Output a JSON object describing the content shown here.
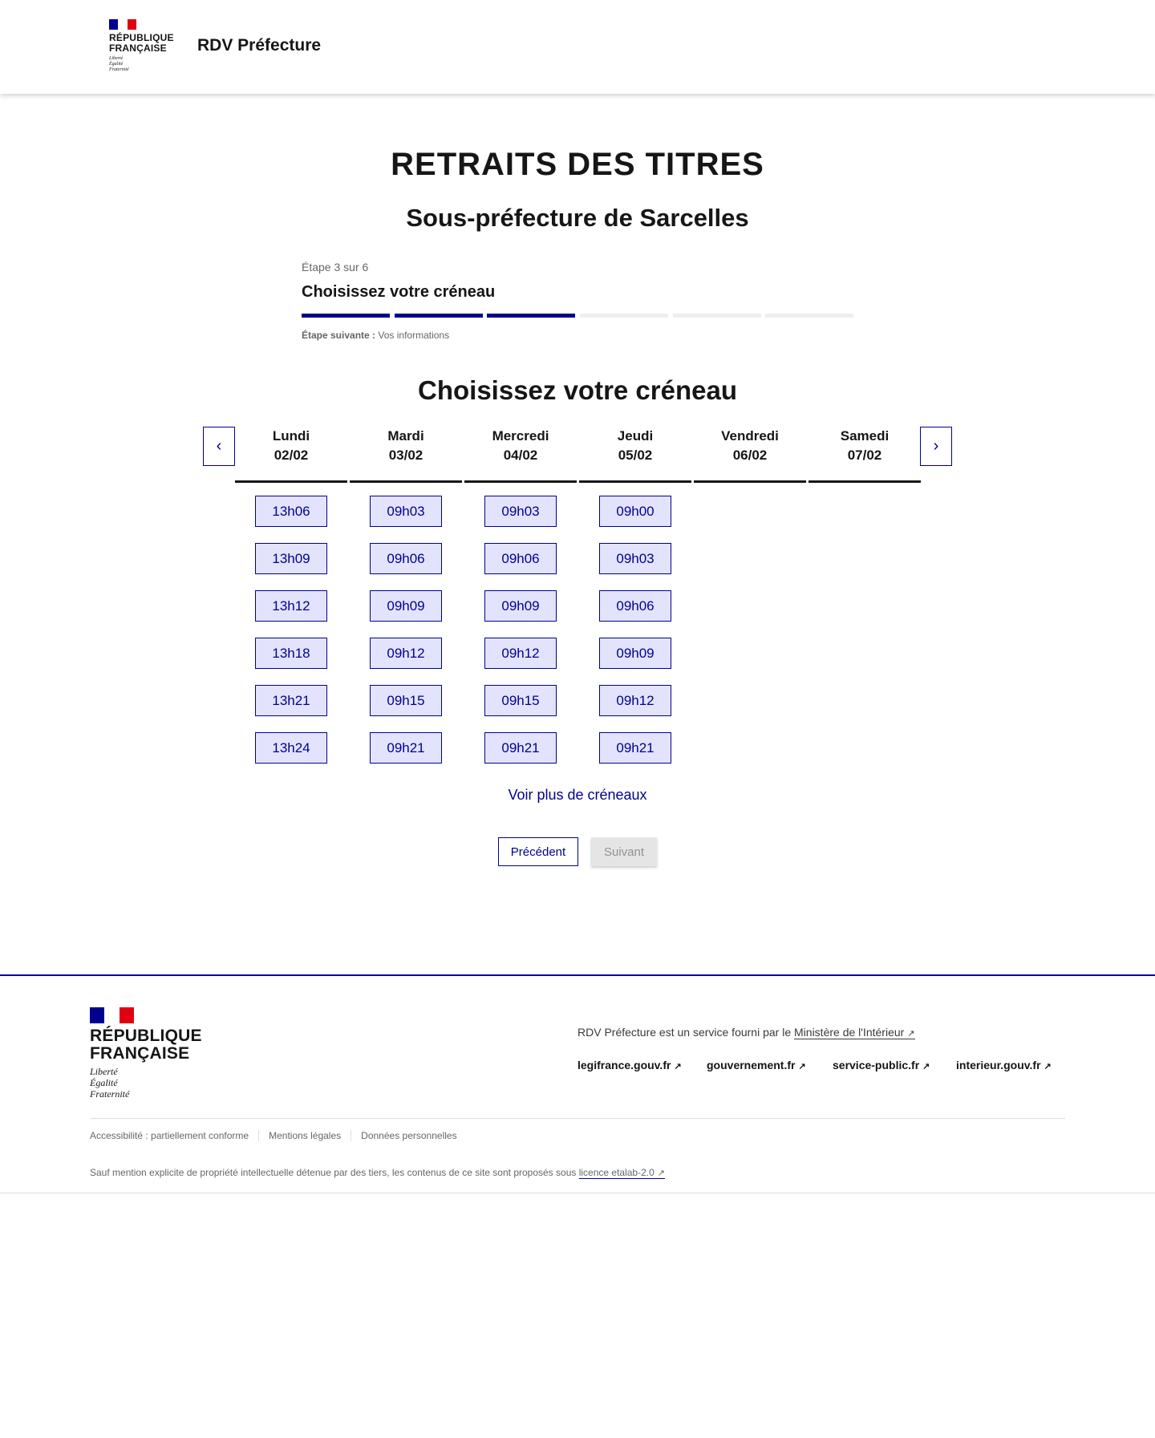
{
  "header": {
    "logo": {
      "line1": "RÉPUBLIQUE",
      "line2": "FRANÇAISE",
      "devise": [
        "Liberté",
        "Égalité",
        "Fraternité"
      ]
    },
    "service_name": "RDV Préfecture"
  },
  "page": {
    "title": "RETRAITS DES TITRES",
    "subtitle": "Sous-préfecture de Sarcelles"
  },
  "stepper": {
    "step_label": "Étape 3 sur 6",
    "current_title": "Choisissez votre créneau",
    "total_steps": 6,
    "current_step": 3,
    "next_label": "Étape suivante :",
    "next_value": "Vos informations"
  },
  "calendar": {
    "title": "Choisissez votre créneau",
    "prev_icon": "chevron-left",
    "next_icon": "chevron-right",
    "days": [
      {
        "name": "Lundi",
        "date": "02/02",
        "slots": [
          "13h06",
          "13h09",
          "13h12",
          "13h18",
          "13h21",
          "13h24"
        ]
      },
      {
        "name": "Mardi",
        "date": "03/02",
        "slots": [
          "09h03",
          "09h06",
          "09h09",
          "09h12",
          "09h15",
          "09h21"
        ]
      },
      {
        "name": "Mercredi",
        "date": "04/02",
        "slots": [
          "09h03",
          "09h06",
          "09h09",
          "09h12",
          "09h15",
          "09h21"
        ]
      },
      {
        "name": "Jeudi",
        "date": "05/02",
        "slots": [
          "09h00",
          "09h03",
          "09h06",
          "09h09",
          "09h12",
          "09h21"
        ]
      },
      {
        "name": "Vendredi",
        "date": "06/02",
        "slots": []
      },
      {
        "name": "Samedi",
        "date": "07/02",
        "slots": []
      }
    ],
    "more_link": "Voir plus de créneaux"
  },
  "actions": {
    "previous": "Précédent",
    "next": "Suivant"
  },
  "footer": {
    "logo": {
      "line1": "RÉPUBLIQUE",
      "line2": "FRANÇAISE",
      "devise": [
        "Liberté",
        "Égalité",
        "Fraternité"
      ]
    },
    "service_text": "RDV Préfecture est un service fourni par le",
    "ministry_link": "Ministère de l'Intérieur",
    "links": [
      "legifrance.gouv.fr",
      "gouvernement.fr",
      "service-public.fr",
      "interieur.gouv.fr"
    ],
    "bottom_links": [
      "Accessibilité : partiellement conforme",
      "Mentions légales",
      "Données personnelles"
    ],
    "license_text": "Sauf mention explicite de propriété intellectuelle détenue par des tiers, les contenus de ce site sont proposés sous",
    "license_link": "licence etalab-2.0"
  },
  "colors": {
    "primary": "#000091",
    "slot_bg": "#e3e3fd",
    "flag_red": "#e1000f"
  }
}
